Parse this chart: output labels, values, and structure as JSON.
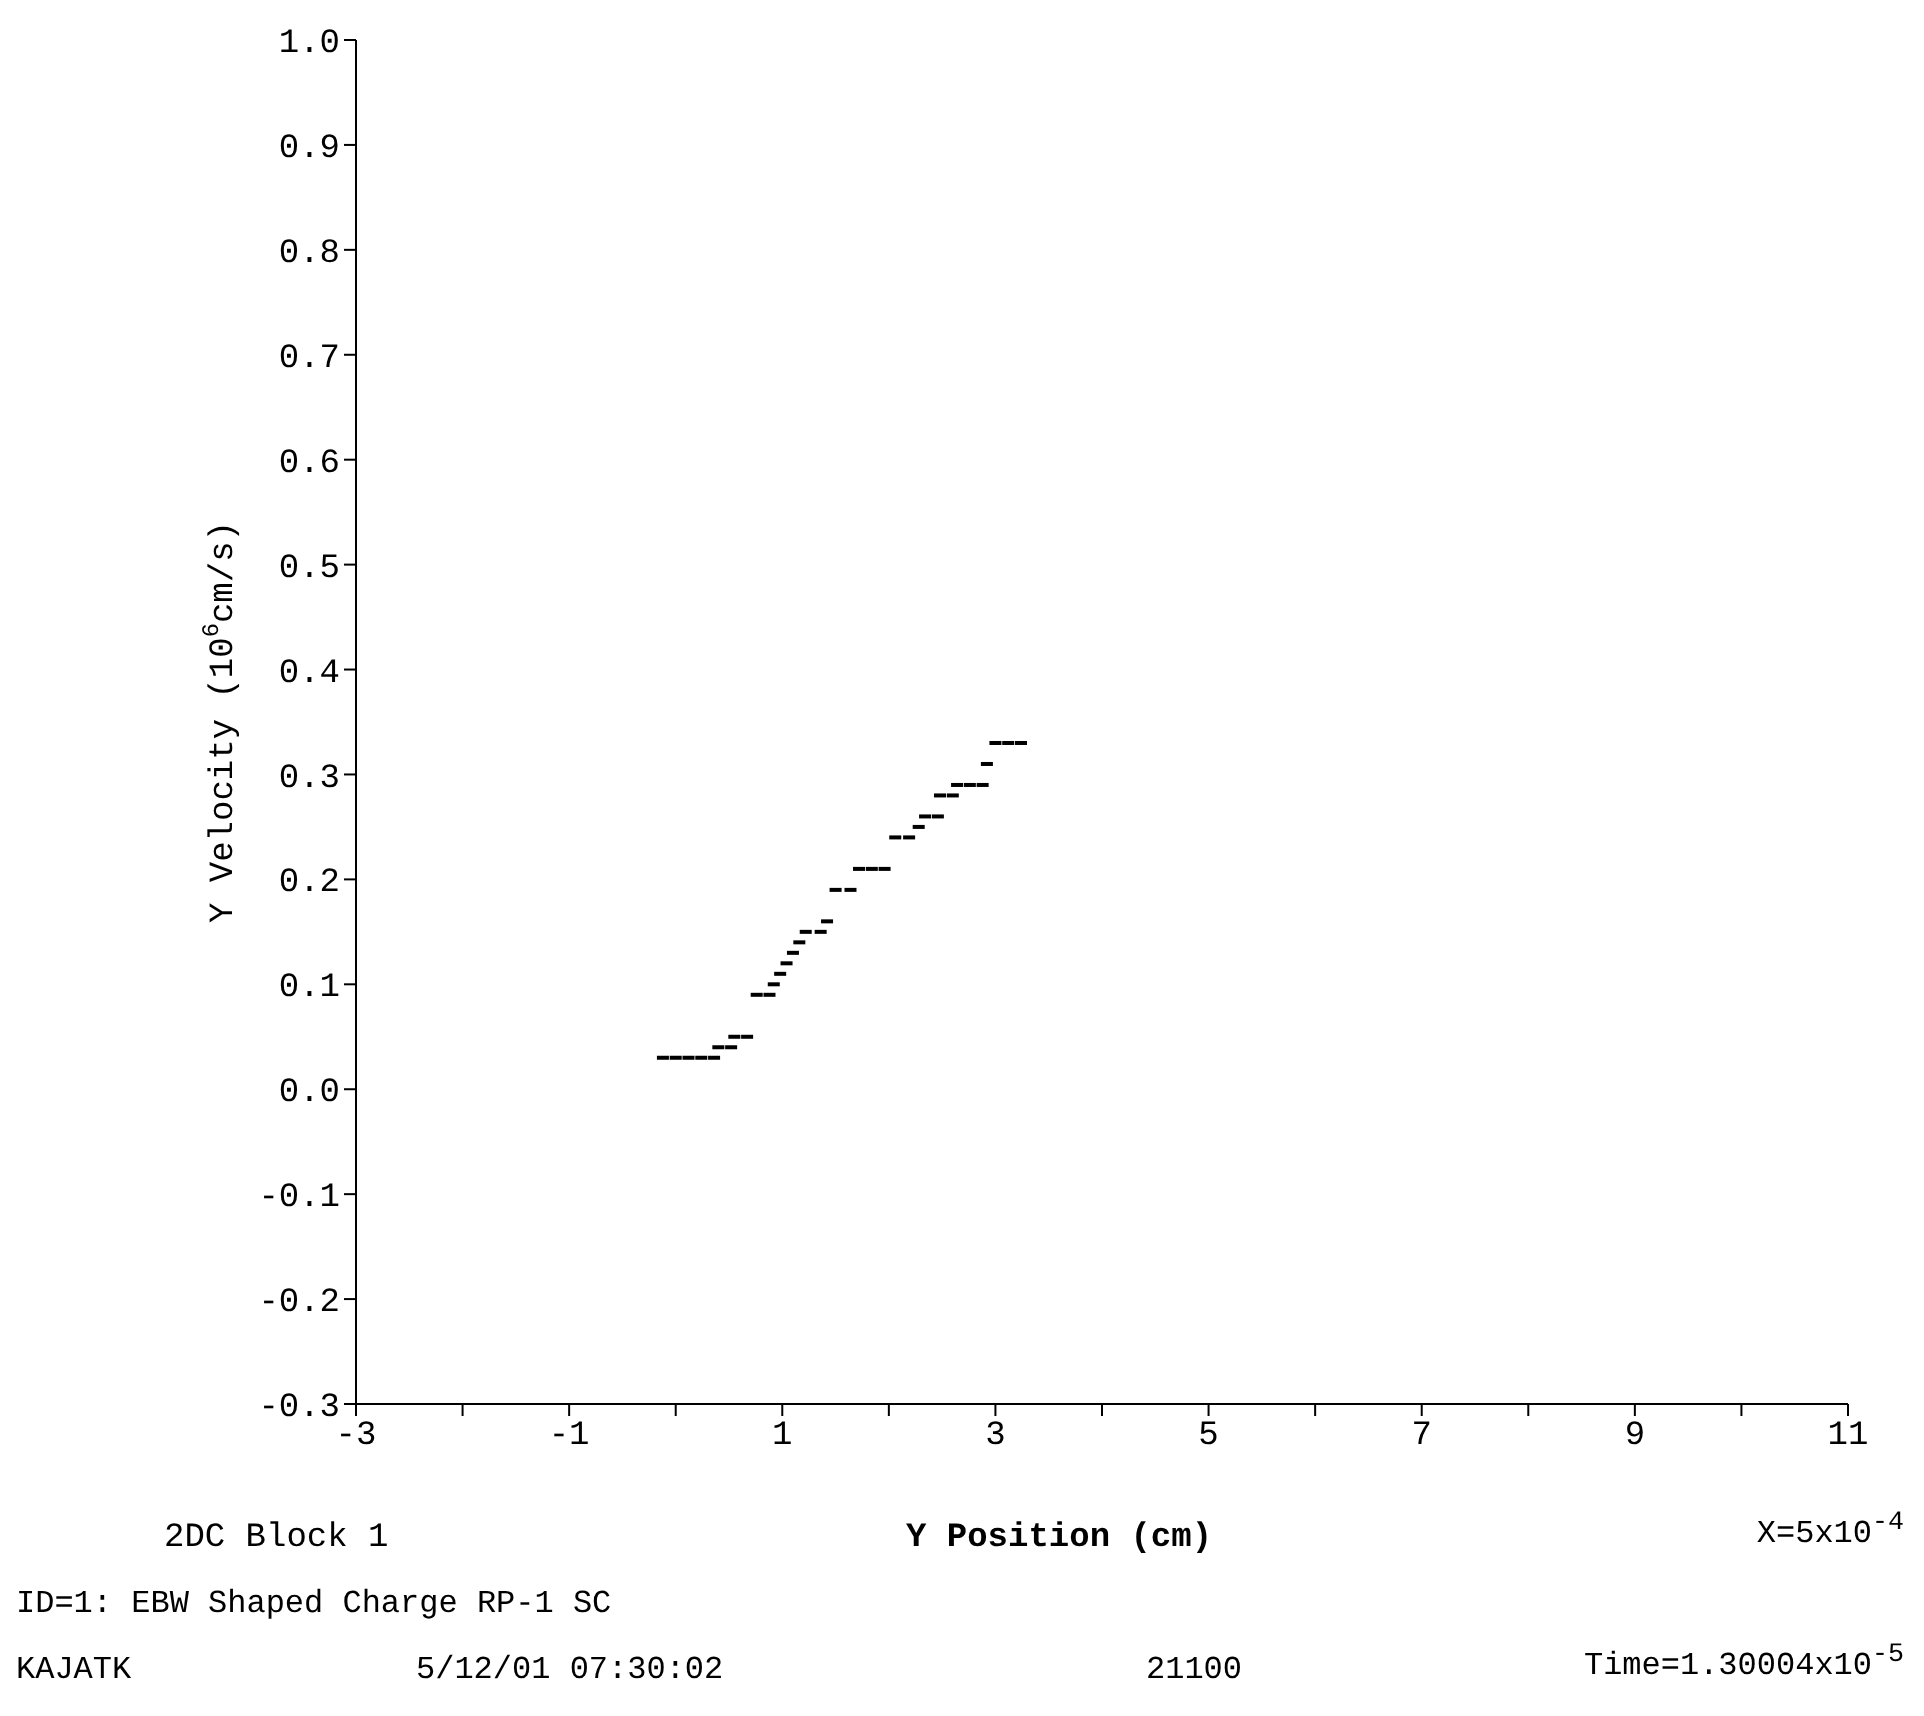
{
  "chart_data": {
    "type": "scatter",
    "xlabel": "Y Position (cm)",
    "ylabel": "Y Velocity (10$^{6}$cm/s)",
    "annotations": [
      "2DC Block 1",
      "X=5x10$^{-4}$",
      "ID=1: EBW Shaped Charge RP-1 SC",
      "KAJATK",
      "5/12/01 07:30:02",
      "21100",
      "Time=1.30004x10$^{-5}$"
    ],
    "x": [
      -0.12,
      0.0,
      0.12,
      0.24,
      0.36,
      0.4,
      0.52,
      0.55,
      0.67,
      0.76,
      0.88,
      0.92,
      0.98,
      1.04,
      1.1,
      1.16,
      1.22,
      1.36,
      1.42,
      1.5,
      1.64,
      1.72,
      1.84,
      1.96,
      2.06,
      2.19,
      2.28,
      2.34,
      2.46,
      2.48,
      2.6,
      2.64,
      2.76,
      2.88,
      2.92,
      3.0,
      3.12,
      3.24
    ],
    "series": [
      {
        "color": "#000000",
        "values": [
          0.03,
          0.03,
          0.03,
          0.03,
          0.03,
          0.04,
          0.04,
          0.05,
          0.05,
          0.09,
          0.09,
          0.1,
          0.11,
          0.12,
          0.13,
          0.14,
          0.15,
          0.15,
          0.16,
          0.19,
          0.19,
          0.21,
          0.21,
          0.21,
          0.24,
          0.24,
          0.25,
          0.26,
          0.26,
          0.28,
          0.28,
          0.29,
          0.29,
          0.29,
          0.31,
          0.33,
          0.33,
          0.33
        ]
      }
    ],
    "xlim": [
      -3,
      11
    ],
    "xticks": [
      -3,
      {
        "value": -2,
        "label": null
      },
      -1,
      {
        "value": 0,
        "label": null
      },
      1,
      {
        "value": 2,
        "label": null
      },
      3,
      {
        "value": 4,
        "label": null
      },
      5,
      {
        "value": 6,
        "label": null
      },
      7,
      {
        "value": 8,
        "label": null
      },
      9,
      {
        "value": 10,
        "label": null
      },
      11
    ],
    "ylim": [
      -0.3,
      1.0
    ],
    "yticks": [
      {
        "value": -0.3,
        "label": "-0.3"
      },
      {
        "value": -0.2,
        "label": "-0.2"
      },
      {
        "value": -0.1,
        "label": "-0.1"
      },
      {
        "value": 0,
        "label": "0.0"
      },
      {
        "value": 0.1,
        "label": "0.1"
      },
      {
        "value": 0.2,
        "label": "0.2"
      },
      {
        "value": 0.3,
        "label": "0.3"
      },
      {
        "value": 0.4,
        "label": "0.4"
      },
      {
        "value": 0.5,
        "label": "0.5"
      },
      {
        "value": 0.6,
        "label": "0.6"
      },
      {
        "value": 0.7,
        "label": "0.7"
      },
      {
        "value": 0.8,
        "label": "0.8"
      },
      {
        "value": 0.9,
        "label": "0.9"
      },
      {
        "value": 1.0,
        "label": "1.0"
      }
    ],
    "grid": false,
    "legend": false,
    "marker": "square"
  }
}
